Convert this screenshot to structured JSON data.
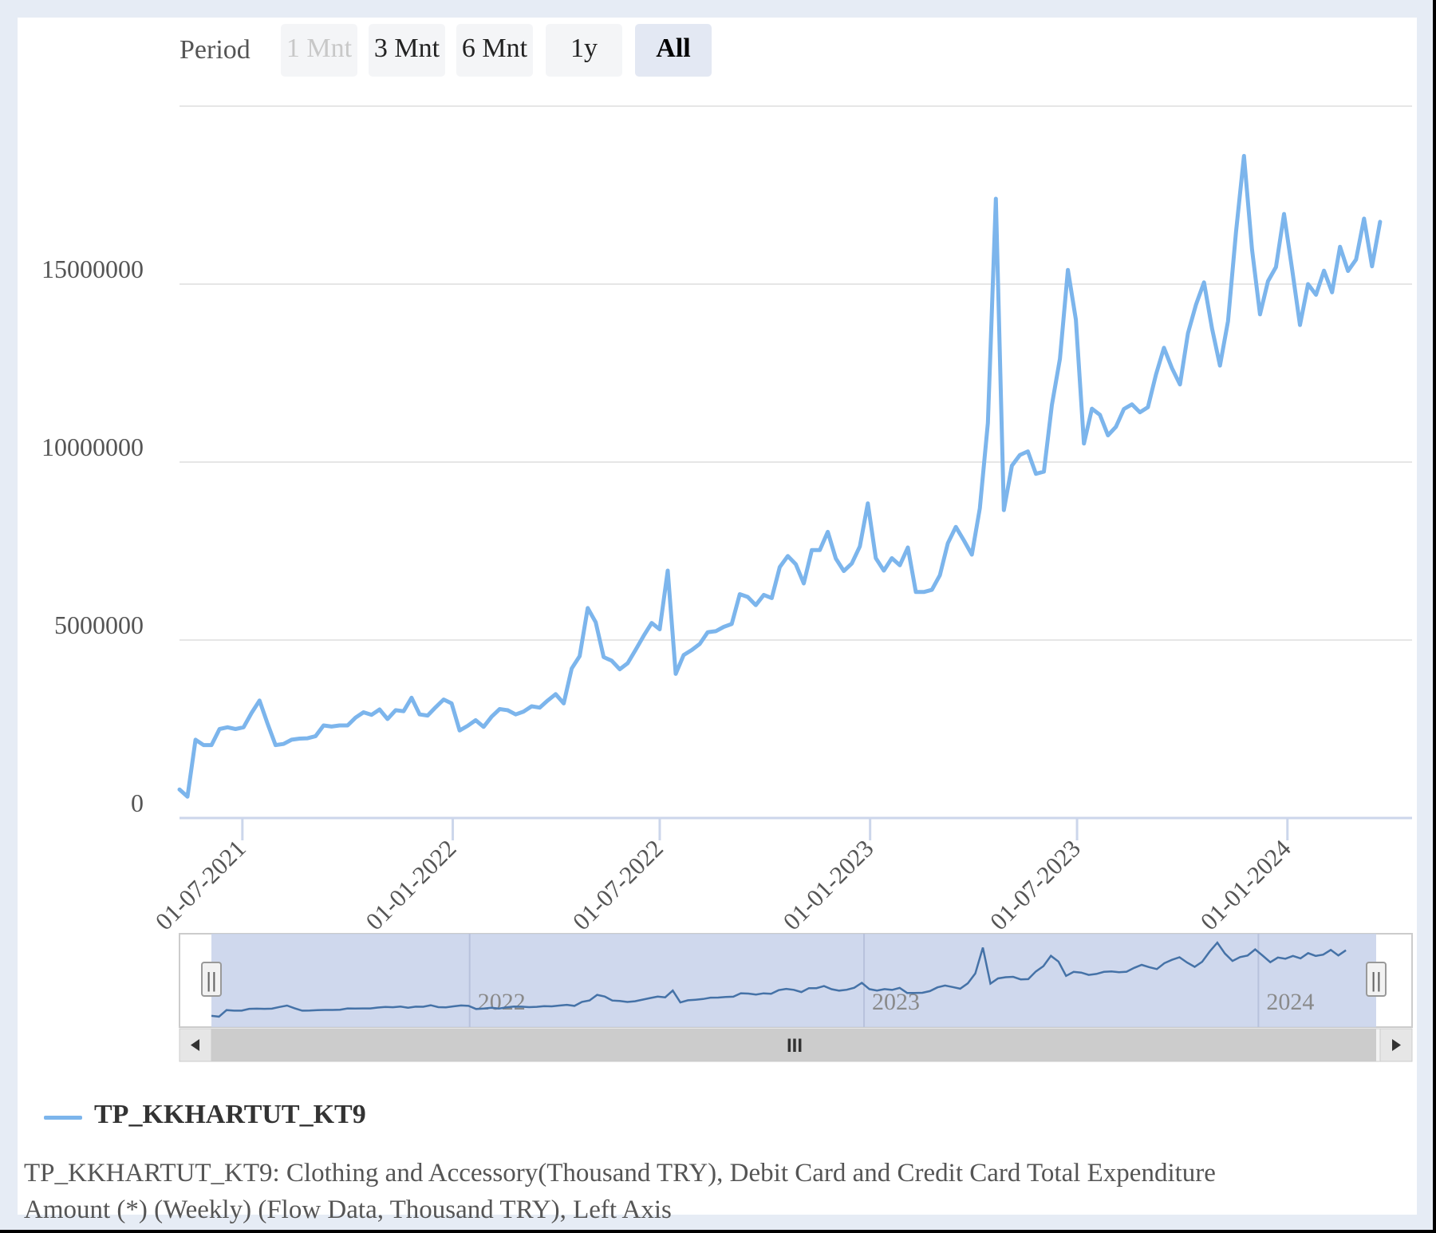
{
  "range_selector": {
    "label": "Period",
    "buttons": [
      {
        "label": "1 Mnt",
        "state": "disabled"
      },
      {
        "label": "3 Mnt",
        "state": "normal"
      },
      {
        "label": "6 Mnt",
        "state": "normal"
      },
      {
        "label": "1y",
        "state": "normal"
      },
      {
        "label": "All",
        "state": "selected"
      }
    ]
  },
  "legend": {
    "label": "TP_KKHARTUT_KT9",
    "color": "#7cb5ec"
  },
  "description": "TP_KKHARTUT_KT9: Clothing and Accessory(Thousand TRY), Debit Card and Credit Card Total Expenditure Amount (*) (Weekly) (Flow Data, Thousand TRY), Left Axis",
  "navigator": {
    "tick_labels": [
      "2022",
      "2023",
      "2024"
    ],
    "scroll_grip": "III",
    "handle_grip": "||"
  },
  "colors": {
    "series": "#7cb5ec",
    "navigator_series": "#4572a7",
    "navigator_mask": "#c7d1ea",
    "grid": "#e6e6e6"
  },
  "chart_data": {
    "type": "line",
    "x_axis": {
      "type": "datetime",
      "range": [
        "2021-05-07",
        "2024-04-19"
      ],
      "tick_labels": [
        "01-07-2021",
        "01-01-2022",
        "01-07-2022",
        "01-01-2023",
        "01-07-2023",
        "01-01-2024"
      ],
      "tick_dates": [
        "2021-07-01",
        "2022-01-01",
        "2022-07-01",
        "2023-01-01",
        "2023-07-01",
        "2024-01-01"
      ]
    },
    "y_axis": {
      "range": [
        0,
        20000000
      ],
      "tick_values": [
        0,
        5000000,
        10000000,
        15000000
      ],
      "tick_labels": [
        "0",
        "5000000",
        "10000000",
        "15000000"
      ],
      "grid": true
    },
    "legend_position": "bottom-left",
    "series": [
      {
        "name": "TP_KKHARTUT_KT9",
        "start_date": "2021-05-07",
        "interval_days": 7,
        "values": [
          800000,
          600000,
          2200000,
          2050000,
          2050000,
          2500000,
          2550000,
          2500000,
          2550000,
          2950000,
          3300000,
          2650000,
          2050000,
          2080000,
          2200000,
          2230000,
          2240000,
          2300000,
          2600000,
          2570000,
          2600000,
          2600000,
          2820000,
          2970000,
          2900000,
          3050000,
          2780000,
          3030000,
          3000000,
          3380000,
          2910000,
          2880000,
          3110000,
          3330000,
          3220000,
          2460000,
          2590000,
          2750000,
          2560000,
          2850000,
          3060000,
          3030000,
          2910000,
          2990000,
          3140000,
          3100000,
          3300000,
          3480000,
          3220000,
          4200000,
          4550000,
          5900000,
          5500000,
          4520000,
          4420000,
          4180000,
          4350000,
          4730000,
          5120000,
          5480000,
          5300000,
          6950000,
          4050000,
          4580000,
          4720000,
          4890000,
          5220000,
          5250000,
          5370000,
          5450000,
          6290000,
          6210000,
          5980000,
          6270000,
          6180000,
          7050000,
          7360000,
          7130000,
          6590000,
          7530000,
          7530000,
          8040000,
          7290000,
          6940000,
          7150000,
          7630000,
          8840000,
          7300000,
          6950000,
          7300000,
          7100000,
          7600000,
          6350000,
          6350000,
          6410000,
          6820000,
          7720000,
          8180000,
          7800000,
          7400000,
          8700000,
          11100000,
          17400000,
          8650000,
          9900000,
          10200000,
          10300000,
          9670000,
          9730000,
          11600000,
          12900000,
          15400000,
          14000000,
          10520000,
          11500000,
          11330000,
          10750000,
          10990000,
          11490000,
          11620000,
          11400000,
          11540000,
          12460000,
          13210000,
          12640000,
          12180000,
          13620000,
          14420000,
          15050000,
          13760000,
          12710000,
          13960000,
          16460000,
          18600000,
          15970000,
          14150000,
          15080000,
          15480000,
          16970000,
          15440000,
          13850000,
          15000000,
          14700000,
          15380000,
          14770000,
          16050000,
          15370000,
          15690000,
          16840000,
          15500000,
          16750000
        ]
      }
    ]
  }
}
